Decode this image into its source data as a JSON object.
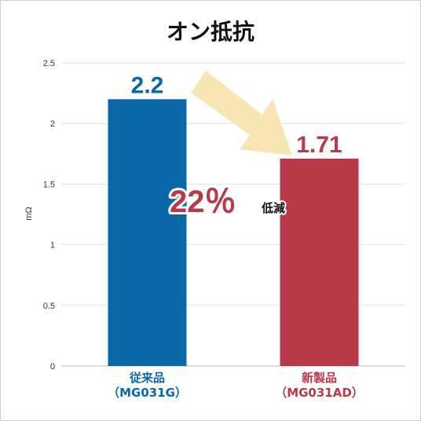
{
  "chart_data": {
    "type": "bar",
    "title": "オン抵抗",
    "ylabel": "mΩ",
    "ylim": [
      0,
      2.5
    ],
    "yticks": [
      "0",
      "0.5",
      "1",
      "1.5",
      "2",
      "2.5"
    ],
    "grid": true,
    "categories": [
      {
        "line1": "従来品",
        "line2": "（MG031G）"
      },
      {
        "line1": "新製品",
        "line2": "（MG031AD）"
      }
    ],
    "values": [
      2.2,
      1.71
    ],
    "value_labels": [
      "2.2",
      "1.71"
    ],
    "colors": [
      "#0a67a8",
      "#b73a4b"
    ],
    "annotation": {
      "percent": "22％",
      "text": "低減"
    }
  }
}
